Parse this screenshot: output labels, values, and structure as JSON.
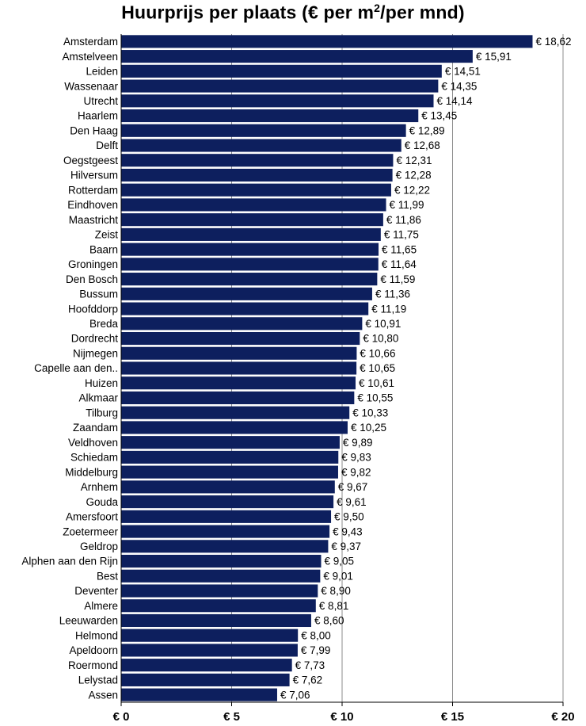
{
  "chart_data": {
    "type": "bar",
    "orientation": "horizontal",
    "title_main": "Huurprijs per plaats  (€ per m",
    "title_sup": "2",
    "title_rest": "/per mnd)",
    "categories": [
      "Amsterdam",
      "Amstelveen",
      "Leiden",
      "Wassenaar",
      "Utrecht",
      "Haarlem",
      "Den Haag",
      "Delft",
      "Oegstgeest",
      "Hilversum",
      "Rotterdam",
      "Eindhoven",
      "Maastricht",
      "Zeist",
      "Baarn",
      "Groningen",
      "Den Bosch",
      "Bussum",
      "Hoofddorp",
      "Breda",
      "Dordrecht",
      "Nijmegen",
      "Capelle aan den..",
      "Huizen",
      "Alkmaar",
      "Tilburg",
      "Zaandam",
      "Veldhoven",
      "Schiedam",
      "Middelburg",
      "Arnhem",
      "Gouda",
      "Amersfoort",
      "Zoetermeer",
      "Geldrop",
      "Alphen aan den Rijn",
      "Best",
      "Deventer",
      "Almere",
      "Leeuwarden",
      "Helmond",
      "Apeldoorn",
      "Roermond",
      "Lelystad",
      "Assen"
    ],
    "values": [
      18.62,
      15.91,
      14.51,
      14.35,
      14.14,
      13.45,
      12.89,
      12.68,
      12.31,
      12.28,
      12.22,
      11.99,
      11.86,
      11.75,
      11.65,
      11.64,
      11.59,
      11.36,
      11.19,
      10.91,
      10.8,
      10.66,
      10.65,
      10.61,
      10.55,
      10.33,
      10.25,
      9.89,
      9.83,
      9.82,
      9.67,
      9.61,
      9.5,
      9.43,
      9.37,
      9.05,
      9.01,
      8.9,
      8.81,
      8.6,
      8.0,
      7.99,
      7.73,
      7.62,
      7.06
    ],
    "value_labels": [
      "€ 18,62",
      "€ 15,91",
      "€ 14,51",
      "€ 14,35",
      "€ 14,14",
      "€ 13,45",
      "€ 12,89",
      "€ 12,68",
      "€ 12,31",
      "€ 12,28",
      "€ 12,22",
      "€ 11,99",
      "€ 11,86",
      "€ 11,75",
      "€ 11,65",
      "€ 11,64",
      "€ 11,59",
      "€ 11,36",
      "€ 11,19",
      "€ 10,91",
      "€ 10,80",
      "€ 10,66",
      "€ 10,65",
      "€ 10,61",
      "€ 10,55",
      "€ 10,33",
      "€ 10,25",
      "€ 9,89",
      "€ 9,83",
      "€ 9,82",
      "€ 9,67",
      "€ 9,61",
      "€ 9,50",
      "€ 9,43",
      "€ 9,37",
      "€ 9,05",
      "€ 9,01",
      "€ 8,90",
      "€ 8,81",
      "€ 8,60",
      "€ 8,00",
      "€ 7,99",
      "€ 7,73",
      "€ 7,62",
      "€ 7,06"
    ],
    "x_ticks": [
      0,
      5,
      10,
      15,
      20
    ],
    "x_tick_labels": [
      "€ 0",
      "€ 5",
      "€ 10",
      "€ 15",
      "€ 20"
    ],
    "xlim": [
      0,
      20
    ],
    "grid": "vertical",
    "bar_color": "#0d1f5e"
  }
}
